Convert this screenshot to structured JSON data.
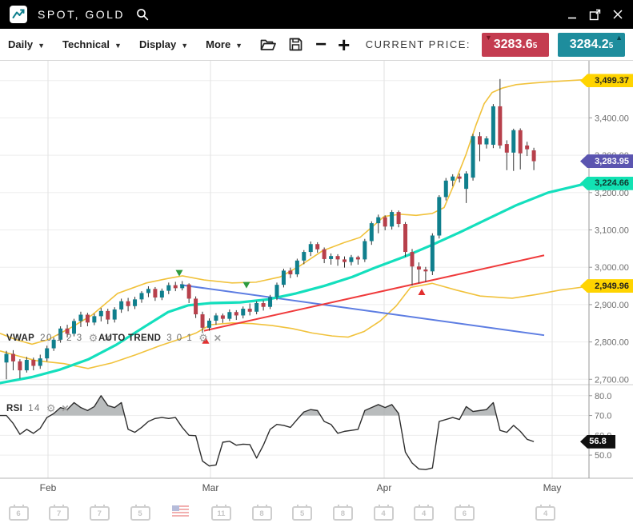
{
  "titlebar": {
    "title": "SPOT, GOLD",
    "logo_icon": "sparkline-icon",
    "controls": {
      "minimize": "minimize",
      "popout": "open-in-window",
      "close": "close"
    }
  },
  "toolbar": {
    "menus": [
      {
        "label": "Daily"
      },
      {
        "label": "Technical"
      },
      {
        "label": "Display"
      },
      {
        "label": "More"
      }
    ],
    "icons": [
      "open-folder-icon",
      "save-icon",
      "zoom-out-icon",
      "zoom-in-icon"
    ],
    "current_price_label": "CURRENT PRICE:",
    "bid": {
      "value": "3283.6",
      "sub": "5",
      "direction": "down"
    },
    "ask": {
      "value": "3284.2",
      "sub": "5",
      "direction": "up"
    }
  },
  "colors": {
    "up_candle": "#0f7f8d",
    "down_candle": "#b7404b",
    "wick": "#333333",
    "vwap": "#14dfbd",
    "bollinger": "#f1c23c",
    "trend_red": "#ef3b3c",
    "trend_blue": "#5d7de2",
    "rsi_line": "#2e2e2e",
    "rsi_fill": "#a7abad",
    "marker_down": "#2d9b3f",
    "marker_up": "#e22f2f",
    "bid_badge": "#c43c50",
    "ask_badge": "#1e8d9d",
    "grid": "#ededed",
    "month_grid": "#e2e2e2"
  },
  "chart_data": {
    "type": "candlestick",
    "title": "SPOT, GOLD",
    "timeframe": "Daily",
    "candle_start_x": 8,
    "candle_spacing": 8.45,
    "y_axis": {
      "gridline_prices": [
        3500,
        3400,
        3300,
        3200,
        3100,
        3000,
        2900,
        2800,
        2700
      ],
      "ticks": [
        {
          "price": 3400,
          "label": "3,400.00"
        },
        {
          "price": 3300,
          "label": "3,300.00"
        },
        {
          "price": 3200,
          "label": "3,200.00"
        },
        {
          "price": 3100,
          "label": "3,100.00"
        },
        {
          "price": 3000,
          "label": "3,000.00"
        },
        {
          "price": 2900,
          "label": "2,900.00"
        },
        {
          "price": 2800,
          "label": "2,800.00"
        },
        {
          "price": 2700,
          "label": "2,700.00"
        }
      ]
    },
    "x_axis": {
      "months": [
        {
          "label": "Feb",
          "x": 60
        },
        {
          "label": "Mar",
          "x": 263
        },
        {
          "label": "Apr",
          "x": 480
        },
        {
          "label": "May",
          "x": 690
        }
      ]
    },
    "price_badges": [
      {
        "label": "3,499.37",
        "price": 3499.37,
        "bg": "#ffd400",
        "fg": "#1f1f1f",
        "series": "bollinger-upper"
      },
      {
        "label": "3,283.95",
        "price": 3283.95,
        "bg": "#5b55b0",
        "fg": "#ffffff",
        "series": "last-close"
      },
      {
        "label": "3,224.66",
        "price": 3224.66,
        "bg": "#12e2b3",
        "fg": "#10352e",
        "series": "vwap"
      },
      {
        "label": "2,949.96",
        "price": 2949.96,
        "bg": "#ffd400",
        "fg": "#1f1f1f",
        "series": "bollinger-lower"
      }
    ],
    "candles": [
      [
        2745,
        2776,
        2700,
        2768
      ],
      [
        2768,
        2778,
        2724,
        2748
      ],
      [
        2748,
        2754,
        2702,
        2724
      ],
      [
        2724,
        2760,
        2718,
        2752
      ],
      [
        2752,
        2758,
        2724,
        2736
      ],
      [
        2736,
        2766,
        2728,
        2756
      ],
      [
        2756,
        2790,
        2748,
        2783
      ],
      [
        2783,
        2812,
        2776,
        2806
      ],
      [
        2806,
        2842,
        2798,
        2836
      ],
      [
        2836,
        2846,
        2812,
        2822
      ],
      [
        2822,
        2862,
        2815,
        2856
      ],
      [
        2856,
        2881,
        2840,
        2873
      ],
      [
        2873,
        2878,
        2842,
        2852
      ],
      [
        2852,
        2876,
        2845,
        2869
      ],
      [
        2869,
        2891,
        2855,
        2883
      ],
      [
        2883,
        2889,
        2848,
        2860
      ],
      [
        2860,
        2893,
        2852,
        2887
      ],
      [
        2887,
        2916,
        2878,
        2909
      ],
      [
        2909,
        2918,
        2882,
        2896
      ],
      [
        2896,
        2921,
        2888,
        2914
      ],
      [
        2914,
        2936,
        2905,
        2931
      ],
      [
        2931,
        2949,
        2920,
        2942
      ],
      [
        2942,
        2947,
        2910,
        2919
      ],
      [
        2919,
        2943,
        2912,
        2937
      ],
      [
        2937,
        2959,
        2928,
        2952
      ],
      [
        2952,
        2961,
        2936,
        2944
      ],
      [
        2944,
        2963,
        2938,
        2954
      ],
      [
        2954,
        2957,
        2904,
        2916
      ],
      [
        2916,
        2922,
        2864,
        2874
      ],
      [
        2874,
        2881,
        2824,
        2838
      ],
      [
        2838,
        2863,
        2830,
        2857
      ],
      [
        2857,
        2877,
        2846,
        2871
      ],
      [
        2871,
        2876,
        2851,
        2862
      ],
      [
        2862,
        2887,
        2856,
        2880
      ],
      [
        2880,
        2885,
        2859,
        2871
      ],
      [
        2871,
        2895,
        2863,
        2889
      ],
      [
        2889,
        2903,
        2871,
        2881
      ],
      [
        2881,
        2909,
        2874,
        2904
      ],
      [
        2904,
        2911,
        2884,
        2894
      ],
      [
        2894,
        2926,
        2888,
        2920
      ],
      [
        2920,
        2959,
        2912,
        2953
      ],
      [
        2953,
        2996,
        2946,
        2991
      ],
      [
        2991,
        2999,
        2971,
        2981
      ],
      [
        2981,
        3023,
        2974,
        3018
      ],
      [
        3018,
        3046,
        3008,
        3041
      ],
      [
        3041,
        3069,
        3030,
        3062
      ],
      [
        3062,
        3067,
        3039,
        3048
      ],
      [
        3048,
        3053,
        3011,
        3022
      ],
      [
        3022,
        3037,
        3007,
        3030
      ],
      [
        3030,
        3035,
        3004,
        3021
      ],
      [
        3021,
        3029,
        2999,
        3014
      ],
      [
        3014,
        3033,
        3005,
        3027
      ],
      [
        3027,
        3031,
        3007,
        3021
      ],
      [
        3021,
        3076,
        3014,
        3070
      ],
      [
        3070,
        3123,
        3060,
        3118
      ],
      [
        3118,
        3141,
        3091,
        3134
      ],
      [
        3134,
        3139,
        3099,
        3109
      ],
      [
        3109,
        3153,
        3101,
        3148
      ],
      [
        3148,
        3152,
        3107,
        3116
      ],
      [
        3116,
        3121,
        3028,
        3041
      ],
      [
        3041,
        3049,
        2951,
        3002
      ],
      [
        3002,
        3013,
        2957,
        2994
      ],
      [
        2994,
        3001,
        2961,
        2989
      ],
      [
        2989,
        3091,
        2979,
        3085
      ],
      [
        3085,
        3193,
        3077,
        3188
      ],
      [
        3188,
        3239,
        3179,
        3232
      ],
      [
        3232,
        3249,
        3217,
        3243
      ],
      [
        3243,
        3251,
        3227,
        3237
      ],
      [
        3210,
        3257,
        3172,
        3251
      ],
      [
        3240,
        3357,
        3232,
        3351
      ],
      [
        3351,
        3362,
        3284,
        3329
      ],
      [
        3329,
        3351,
        3318,
        3345
      ],
      [
        3328,
        3437,
        3319,
        3431
      ],
      [
        3431,
        3504,
        3318,
        3326
      ],
      [
        3330,
        3340,
        3260,
        3307
      ],
      [
        3307,
        3371,
        3258,
        3367
      ],
      [
        3367,
        3372,
        3262,
        3305
      ],
      [
        3326,
        3336,
        3298,
        3316
      ],
      [
        3313,
        3320,
        3260,
        3284
      ]
    ],
    "overlays": {
      "vwap": [
        [
          0,
          2690
        ],
        [
          40,
          2706
        ],
        [
          75,
          2726
        ],
        [
          110,
          2753
        ],
        [
          145,
          2792
        ],
        [
          180,
          2840
        ],
        [
          210,
          2880
        ],
        [
          235,
          2898
        ],
        [
          263,
          2904
        ],
        [
          300,
          2906
        ],
        [
          335,
          2914
        ],
        [
          370,
          2930
        ],
        [
          405,
          2950
        ],
        [
          440,
          2974
        ],
        [
          470,
          3000
        ],
        [
          505,
          3028
        ],
        [
          540,
          3060
        ],
        [
          575,
          3094
        ],
        [
          610,
          3130
        ],
        [
          645,
          3166
        ],
        [
          685,
          3200
        ],
        [
          736,
          3226
        ]
      ],
      "bb_upper": [
        [
          0,
          2823
        ],
        [
          20,
          2806
        ],
        [
          40,
          2794
        ],
        [
          60,
          2806
        ],
        [
          90,
          2840
        ],
        [
          115,
          2872
        ],
        [
          147,
          2930
        ],
        [
          183,
          2958
        ],
        [
          210,
          2970
        ],
        [
          228,
          2977
        ],
        [
          255,
          2966
        ],
        [
          290,
          2958
        ],
        [
          320,
          2960
        ],
        [
          350,
          2974
        ],
        [
          375,
          3004
        ],
        [
          403,
          3044
        ],
        [
          430,
          3066
        ],
        [
          450,
          3080
        ],
        [
          465,
          3108
        ],
        [
          480,
          3136
        ],
        [
          500,
          3142
        ],
        [
          520,
          3139
        ],
        [
          540,
          3144
        ],
        [
          555,
          3160
        ],
        [
          570,
          3235
        ],
        [
          582,
          3300
        ],
        [
          595,
          3382
        ],
        [
          605,
          3438
        ],
        [
          615,
          3468
        ],
        [
          628,
          3480
        ],
        [
          645,
          3489
        ],
        [
          665,
          3493
        ],
        [
          690,
          3497
        ],
        [
          736,
          3503
        ]
      ],
      "bb_lower": [
        [
          0,
          2776
        ],
        [
          20,
          2764
        ],
        [
          45,
          2750
        ],
        [
          80,
          2742
        ],
        [
          110,
          2729
        ],
        [
          140,
          2744
        ],
        [
          170,
          2766
        ],
        [
          200,
          2790
        ],
        [
          225,
          2808
        ],
        [
          245,
          2824
        ],
        [
          263,
          2846
        ],
        [
          290,
          2851
        ],
        [
          315,
          2849
        ],
        [
          340,
          2844
        ],
        [
          365,
          2836
        ],
        [
          390,
          2824
        ],
        [
          415,
          2816
        ],
        [
          435,
          2813
        ],
        [
          455,
          2828
        ],
        [
          475,
          2856
        ],
        [
          495,
          2896
        ],
        [
          513,
          2946
        ],
        [
          540,
          2957
        ],
        [
          570,
          2939
        ],
        [
          600,
          2923
        ],
        [
          640,
          2917
        ],
        [
          670,
          2927
        ],
        [
          700,
          2939
        ],
        [
          736,
          2949
        ]
      ],
      "trend_red": [
        [
          255,
          2830
        ],
        [
          680,
          3032
        ]
      ],
      "trend_blue": [
        [
          225,
          2953
        ],
        [
          680,
          2818
        ]
      ]
    },
    "markers": [
      {
        "x": 224,
        "price": 2984,
        "dir": "down"
      },
      {
        "x": 308,
        "price": 2952,
        "dir": "down"
      },
      {
        "x": 257,
        "price": 2804,
        "dir": "up"
      },
      {
        "x": 527,
        "price": 2934,
        "dir": "up"
      }
    ],
    "indicator_labels": {
      "vwap": {
        "name": "VWAP",
        "params": "20 1 2 3"
      },
      "autotrend": {
        "name": "AUTO TREND",
        "params": "3 0 1"
      },
      "rsi": {
        "name": "RSI",
        "params": "14"
      }
    },
    "rsi": {
      "overbought": 70,
      "ticks": [
        {
          "value": 80,
          "label": "80.0"
        },
        {
          "value": 70,
          "label": "70.0"
        },
        {
          "value": 60,
          "label": "60.0"
        },
        {
          "value": 50,
          "label": "50.0"
        }
      ],
      "badge": {
        "label": "56.8",
        "value": 56.8,
        "bg": "#101010",
        "fg": "#ffffff"
      },
      "values": [
        70,
        66,
        60.5,
        63,
        61,
        63.5,
        69,
        71,
        74,
        73,
        76.5,
        74,
        72.5,
        74.5,
        80,
        75,
        74,
        76.5,
        63,
        61.5,
        64,
        67,
        68.5,
        69,
        68.5,
        69,
        64,
        60,
        59.8,
        47,
        44.5,
        45,
        56.5,
        57,
        55,
        55.5,
        55.3,
        48.5,
        55,
        63,
        65.5,
        65,
        64,
        68,
        71.8,
        73,
        72.5,
        67,
        65.5,
        61,
        62,
        62.5,
        63,
        72.5,
        74,
        75.5,
        74,
        75.5,
        71,
        51.5,
        46,
        43,
        42.7,
        43.5,
        67,
        68,
        69,
        68,
        74.5,
        72,
        72.5,
        73,
        76.5,
        62.5,
        61.5,
        65,
        62,
        58,
        56.8
      ]
    }
  },
  "bottom_strip": {
    "items": [
      "6",
      "7",
      "7",
      "5",
      "flag",
      "11",
      "8",
      "5",
      "8",
      "4",
      "4",
      "6",
      "",
      "4"
    ]
  }
}
